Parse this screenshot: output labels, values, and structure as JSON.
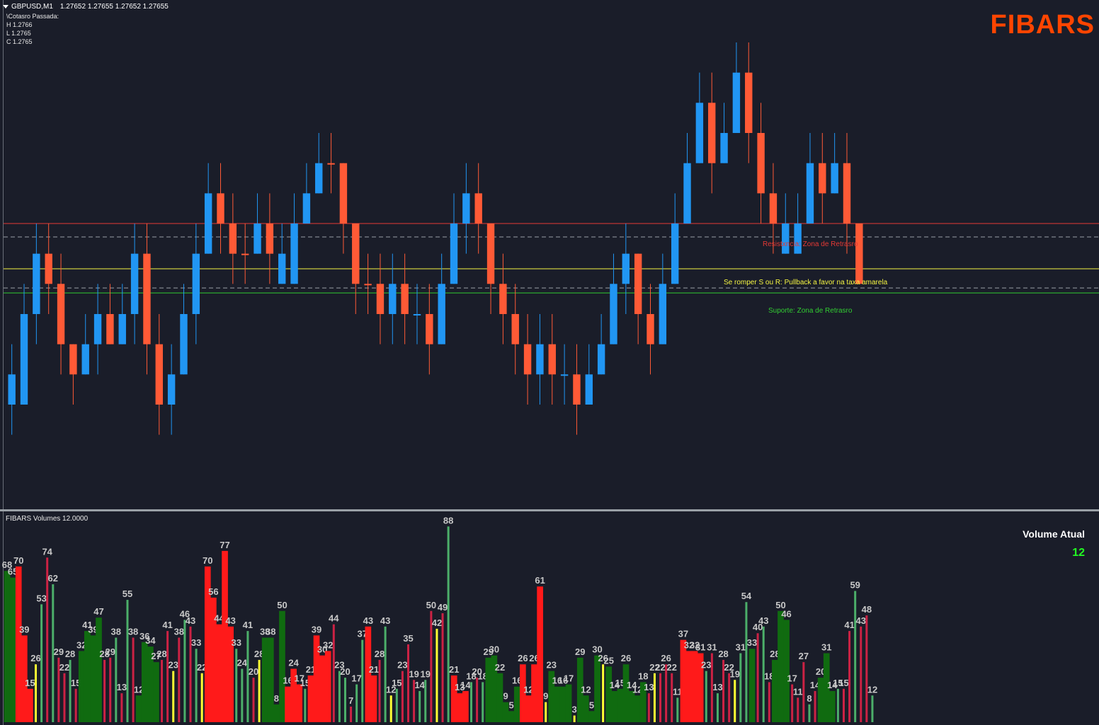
{
  "header": {
    "symbol": "GBPUSD,M1",
    "ohlc": "1.27652 1.27655 1.27652 1.27655",
    "prev_label": "\\Cotasro Passada:",
    "high": "H 1.2766",
    "low": "L 1.2765",
    "close": "C 1.2765"
  },
  "brand": "FIBARS",
  "levels": {
    "resistance_label": "Resistxncia: Zona de Retrasro",
    "pullback_label": "Se romper S ou R: Pullback  a favor na taxa amarela",
    "support_label": "Suporte: Zona de Retrasro"
  },
  "colors": {
    "bull": "#2196f3",
    "bear": "#ff5a36",
    "doji": "#ffe135",
    "resistance": "#e53935",
    "pullback": "#f4f442",
    "support": "#32cd32",
    "vol_red": "#ff1a1a",
    "vol_green": "#106b10",
    "vol_thin_red": "#cc2244",
    "vol_thin_green": "#4caf6a",
    "vol_yellow": "#ffff33"
  },
  "volume_panel": {
    "title": "FIBARS Volumes 12.0000",
    "current_label": "Volume Atual",
    "current_value": "12"
  },
  "chart_data": {
    "type": "candlestick",
    "symbol": "GBPUSD",
    "timeframe": "M1",
    "price_range": [
      1.2757,
      1.2772
    ],
    "levels": {
      "resistance": 1.2766,
      "pullback": 1.27645,
      "support": 1.27637
    },
    "candles": [
      [
        1.2761,
        1.276,
        1.2762,
        1.2759,
        "u"
      ],
      [
        1.276,
        1.2763,
        1.2764,
        1.276,
        "u"
      ],
      [
        1.2763,
        1.2765,
        1.2766,
        1.2762,
        "u"
      ],
      [
        1.2765,
        1.2764,
        1.2766,
        1.2763,
        "d"
      ],
      [
        1.2764,
        1.2762,
        1.2765,
        1.2761,
        "d"
      ],
      [
        1.2762,
        1.2761,
        1.2762,
        1.276,
        "d"
      ],
      [
        1.2761,
        1.2762,
        1.2763,
        1.2761,
        "u"
      ],
      [
        1.2762,
        1.2763,
        1.2764,
        1.2761,
        "u"
      ],
      [
        1.2763,
        1.2762,
        1.2764,
        1.2762,
        "d"
      ],
      [
        1.2762,
        1.2763,
        1.2764,
        1.2762,
        "u"
      ],
      [
        1.2763,
        1.2765,
        1.2766,
        1.2762,
        "u"
      ],
      [
        1.2765,
        1.2762,
        1.2766,
        1.2761,
        "d"
      ],
      [
        1.2762,
        1.276,
        1.2763,
        1.2759,
        "d"
      ],
      [
        1.276,
        1.2761,
        1.2762,
        1.2759,
        "u"
      ],
      [
        1.2761,
        1.2763,
        1.2764,
        1.2761,
        "u"
      ],
      [
        1.2763,
        1.2765,
        1.2766,
        1.2762,
        "u"
      ],
      [
        1.2765,
        1.2767,
        1.2768,
        1.2765,
        "u"
      ],
      [
        1.2767,
        1.2766,
        1.2768,
        1.2765,
        "d"
      ],
      [
        1.2766,
        1.2765,
        1.2767,
        1.2764,
        "d"
      ],
      [
        1.2765,
        1.2765,
        1.2766,
        1.2764,
        "d"
      ],
      [
        1.2765,
        1.2766,
        1.2767,
        1.2765,
        "u"
      ],
      [
        1.2766,
        1.2765,
        1.2767,
        1.2764,
        "d"
      ],
      [
        1.2765,
        1.2764,
        1.2766,
        1.2764,
        "u"
      ],
      [
        1.2764,
        1.2766,
        1.2767,
        1.2764,
        "u"
      ],
      [
        1.2766,
        1.2767,
        1.2768,
        1.2766,
        "u"
      ],
      [
        1.2767,
        1.2768,
        1.2769,
        1.2767,
        "u"
      ],
      [
        1.2768,
        1.2768,
        1.2769,
        1.2767,
        "d"
      ],
      [
        1.2768,
        1.2766,
        1.2768,
        1.2765,
        "d"
      ],
      [
        1.2766,
        1.2764,
        1.2766,
        1.2763,
        "d"
      ],
      [
        1.2764,
        1.2764,
        1.2765,
        1.2763,
        "d"
      ],
      [
        1.2764,
        1.2763,
        1.2765,
        1.2762,
        "d"
      ],
      [
        1.2763,
        1.2764,
        1.2765,
        1.2762,
        "u"
      ],
      [
        1.2764,
        1.2763,
        1.2765,
        1.2762,
        "d"
      ],
      [
        1.2763,
        1.2763,
        1.2764,
        1.2762,
        "u"
      ],
      [
        1.2763,
        1.2762,
        1.2764,
        1.2761,
        "d"
      ],
      [
        1.2762,
        1.2764,
        1.2765,
        1.2762,
        "u"
      ],
      [
        1.2764,
        1.2766,
        1.2767,
        1.2764,
        "u"
      ],
      [
        1.2766,
        1.2767,
        1.2768,
        1.2765,
        "u"
      ],
      [
        1.2767,
        1.2766,
        1.2768,
        1.2765,
        "d"
      ],
      [
        1.2766,
        1.2764,
        1.2766,
        1.2763,
        "d"
      ],
      [
        1.2764,
        1.2763,
        1.2765,
        1.2762,
        "d"
      ],
      [
        1.2763,
        1.2762,
        1.2764,
        1.2761,
        "d"
      ],
      [
        1.2762,
        1.2761,
        1.2763,
        1.276,
        "d"
      ],
      [
        1.2761,
        1.2762,
        1.2763,
        1.276,
        "u"
      ],
      [
        1.2762,
        1.2761,
        1.2763,
        1.276,
        "d"
      ],
      [
        1.2761,
        1.2761,
        1.2762,
        1.276,
        "u"
      ],
      [
        1.2761,
        1.276,
        1.2762,
        1.2759,
        "d"
      ],
      [
        1.276,
        1.2761,
        1.2762,
        1.276,
        "u"
      ],
      [
        1.2761,
        1.2762,
        1.2763,
        1.2761,
        "u"
      ],
      [
        1.2762,
        1.2764,
        1.2765,
        1.2762,
        "u"
      ],
      [
        1.2764,
        1.2765,
        1.2766,
        1.2763,
        "u"
      ],
      [
        1.2765,
        1.2763,
        1.2765,
        1.2762,
        "d"
      ],
      [
        1.2763,
        1.2762,
        1.2764,
        1.2761,
        "d"
      ],
      [
        1.2762,
        1.2764,
        1.2765,
        1.2762,
        "u"
      ],
      [
        1.2764,
        1.2766,
        1.2767,
        1.2764,
        "u"
      ],
      [
        1.2766,
        1.2768,
        1.2769,
        1.2766,
        "u"
      ],
      [
        1.2768,
        1.277,
        1.2771,
        1.2768,
        "u"
      ],
      [
        1.277,
        1.2768,
        1.2771,
        1.2767,
        "d"
      ],
      [
        1.2768,
        1.2769,
        1.277,
        1.2768,
        "u"
      ],
      [
        1.2769,
        1.2771,
        1.2772,
        1.2769,
        "u"
      ],
      [
        1.2771,
        1.2769,
        1.2772,
        1.2768,
        "d"
      ],
      [
        1.2769,
        1.2767,
        1.277,
        1.2766,
        "d"
      ],
      [
        1.2767,
        1.2766,
        1.2768,
        1.2765,
        "d"
      ],
      [
        1.2766,
        1.2765,
        1.2767,
        1.2765,
        "u"
      ],
      [
        1.2765,
        1.2766,
        1.2767,
        1.2765,
        "u"
      ],
      [
        1.2766,
        1.2768,
        1.2769,
        1.2766,
        "u"
      ],
      [
        1.2768,
        1.2767,
        1.2769,
        1.2766,
        "d"
      ],
      [
        1.2767,
        1.2768,
        1.2769,
        1.2767,
        "u"
      ],
      [
        1.2768,
        1.2766,
        1.2769,
        1.2765,
        "d"
      ],
      [
        1.2766,
        1.2764,
        1.2766,
        1.2764,
        "d"
      ]
    ],
    "volumes": [
      {
        "v": 68,
        "c": "g"
      },
      {
        "v": 65,
        "c": "g"
      },
      {
        "v": 70,
        "c": "r"
      },
      {
        "v": 39,
        "c": "r"
      },
      {
        "v": 15,
        "c": "r"
      },
      {
        "v": 26,
        "c": "y"
      },
      {
        "v": 53,
        "c": "tg"
      },
      {
        "v": 74,
        "c": "tr"
      },
      {
        "v": 62,
        "c": "tg"
      },
      {
        "v": 29,
        "c": "tr"
      },
      {
        "v": 22,
        "c": "tr"
      },
      {
        "v": 28,
        "c": "tg"
      },
      {
        "v": 15,
        "c": "tr"
      },
      {
        "v": 32,
        "c": "g"
      },
      {
        "v": 41,
        "c": "g"
      },
      {
        "v": 39,
        "c": "g"
      },
      {
        "v": 47,
        "c": "g"
      },
      {
        "v": 28,
        "c": "tr"
      },
      {
        "v": 29,
        "c": "tr"
      },
      {
        "v": 38,
        "c": "tg"
      },
      {
        "v": 13,
        "c": "tr"
      },
      {
        "v": 55,
        "c": "tg"
      },
      {
        "v": 38,
        "c": "tr"
      },
      {
        "v": 12,
        "c": "g"
      },
      {
        "v": 36,
        "c": "g"
      },
      {
        "v": 34,
        "c": "g"
      },
      {
        "v": 27,
        "c": "g"
      },
      {
        "v": 28,
        "c": "tr"
      },
      {
        "v": 41,
        "c": "tr"
      },
      {
        "v": 23,
        "c": "y"
      },
      {
        "v": 38,
        "c": "tr"
      },
      {
        "v": 46,
        "c": "tg"
      },
      {
        "v": 43,
        "c": "tr"
      },
      {
        "v": 33,
        "c": "tg"
      },
      {
        "v": 22,
        "c": "y"
      },
      {
        "v": 70,
        "c": "r"
      },
      {
        "v": 56,
        "c": "r"
      },
      {
        "v": 44,
        "c": "r"
      },
      {
        "v": 77,
        "c": "r"
      },
      {
        "v": 43,
        "c": "r"
      },
      {
        "v": 33,
        "c": "tg"
      },
      {
        "v": 24,
        "c": "tg"
      },
      {
        "v": 41,
        "c": "tg"
      },
      {
        "v": 20,
        "c": "tr"
      },
      {
        "v": 28,
        "c": "y"
      },
      {
        "v": 38,
        "c": "g"
      },
      {
        "v": 38,
        "c": "g"
      },
      {
        "v": 8,
        "c": "g"
      },
      {
        "v": 50,
        "c": "g"
      },
      {
        "v": 16,
        "c": "r"
      },
      {
        "v": 24,
        "c": "r"
      },
      {
        "v": 17,
        "c": "r"
      },
      {
        "v": 15,
        "c": "tg"
      },
      {
        "v": 21,
        "c": "r"
      },
      {
        "v": 39,
        "c": "r"
      },
      {
        "v": 30,
        "c": "r"
      },
      {
        "v": 32,
        "c": "r"
      },
      {
        "v": 44,
        "c": "tr"
      },
      {
        "v": 23,
        "c": "tg"
      },
      {
        "v": 20,
        "c": "tg"
      },
      {
        "v": 7,
        "c": "tr"
      },
      {
        "v": 17,
        "c": "tg"
      },
      {
        "v": 37,
        "c": "tg"
      },
      {
        "v": 43,
        "c": "r"
      },
      {
        "v": 21,
        "c": "r"
      },
      {
        "v": 28,
        "c": "tr"
      },
      {
        "v": 43,
        "c": "tg"
      },
      {
        "v": 12,
        "c": "y"
      },
      {
        "v": 15,
        "c": "tg"
      },
      {
        "v": 23,
        "c": "tr"
      },
      {
        "v": 35,
        "c": "tr"
      },
      {
        "v": 19,
        "c": "tr"
      },
      {
        "v": 14,
        "c": "tg"
      },
      {
        "v": 19,
        "c": "tg"
      },
      {
        "v": 50,
        "c": "tr"
      },
      {
        "v": 42,
        "c": "y"
      },
      {
        "v": 49,
        "c": "tr"
      },
      {
        "v": 88,
        "c": "tg"
      },
      {
        "v": 21,
        "c": "r"
      },
      {
        "v": 13,
        "c": "r"
      },
      {
        "v": 14,
        "c": "r"
      },
      {
        "v": 18,
        "c": "tg"
      },
      {
        "v": 20,
        "c": "tr"
      },
      {
        "v": 18,
        "c": "tg"
      },
      {
        "v": 29,
        "c": "g"
      },
      {
        "v": 30,
        "c": "g"
      },
      {
        "v": 22,
        "c": "g"
      },
      {
        "v": 9,
        "c": "g"
      },
      {
        "v": 5,
        "c": "g"
      },
      {
        "v": 16,
        "c": "g"
      },
      {
        "v": 26,
        "c": "r"
      },
      {
        "v": 12,
        "c": "r"
      },
      {
        "v": 26,
        "c": "r"
      },
      {
        "v": 61,
        "c": "r"
      },
      {
        "v": 9,
        "c": "y"
      },
      {
        "v": 23,
        "c": "g"
      },
      {
        "v": 16,
        "c": "g"
      },
      {
        "v": 16,
        "c": "g"
      },
      {
        "v": 17,
        "c": "g"
      },
      {
        "v": 3,
        "c": "y"
      },
      {
        "v": 29,
        "c": "g"
      },
      {
        "v": 12,
        "c": "g"
      },
      {
        "v": 5,
        "c": "g"
      },
      {
        "v": 30,
        "c": "g"
      },
      {
        "v": 26,
        "c": "y"
      },
      {
        "v": 25,
        "c": "g"
      },
      {
        "v": 14,
        "c": "g"
      },
      {
        "v": 15,
        "c": "g"
      },
      {
        "v": 26,
        "c": "g"
      },
      {
        "v": 14,
        "c": "g"
      },
      {
        "v": 12,
        "c": "g"
      },
      {
        "v": 18,
        "c": "g"
      },
      {
        "v": 13,
        "c": "tr"
      },
      {
        "v": 22,
        "c": "y"
      },
      {
        "v": 22,
        "c": "tr"
      },
      {
        "v": 26,
        "c": "tr"
      },
      {
        "v": 22,
        "c": "tr"
      },
      {
        "v": 11,
        "c": "tg"
      },
      {
        "v": 37,
        "c": "r"
      },
      {
        "v": 32,
        "c": "r"
      },
      {
        "v": 32,
        "c": "r"
      },
      {
        "v": 31,
        "c": "r"
      },
      {
        "v": 23,
        "c": "tg"
      },
      {
        "v": 31,
        "c": "tr"
      },
      {
        "v": 13,
        "c": "tg"
      },
      {
        "v": 28,
        "c": "tr"
      },
      {
        "v": 22,
        "c": "tr"
      },
      {
        "v": 19,
        "c": "y"
      },
      {
        "v": 31,
        "c": "tg"
      },
      {
        "v": 54,
        "c": "tg"
      },
      {
        "v": 33,
        "c": "g"
      },
      {
        "v": 40,
        "c": "tr"
      },
      {
        "v": 43,
        "c": "tg"
      },
      {
        "v": 18,
        "c": "tr"
      },
      {
        "v": 28,
        "c": "g"
      },
      {
        "v": 50,
        "c": "g"
      },
      {
        "v": 46,
        "c": "g"
      },
      {
        "v": 17,
        "c": "tr"
      },
      {
        "v": 11,
        "c": "tr"
      },
      {
        "v": 27,
        "c": "tr"
      },
      {
        "v": 8,
        "c": "tg"
      },
      {
        "v": 14,
        "c": "tr"
      },
      {
        "v": 20,
        "c": "g"
      },
      {
        "v": 31,
        "c": "g"
      },
      {
        "v": 14,
        "c": "g"
      },
      {
        "v": 15,
        "c": "tg"
      },
      {
        "v": 15,
        "c": "tr"
      },
      {
        "v": 41,
        "c": "tr"
      },
      {
        "v": 59,
        "c": "tg"
      },
      {
        "v": 43,
        "c": "tr"
      },
      {
        "v": 48,
        "c": "tr"
      },
      {
        "v": 12,
        "c": "tg"
      }
    ]
  }
}
